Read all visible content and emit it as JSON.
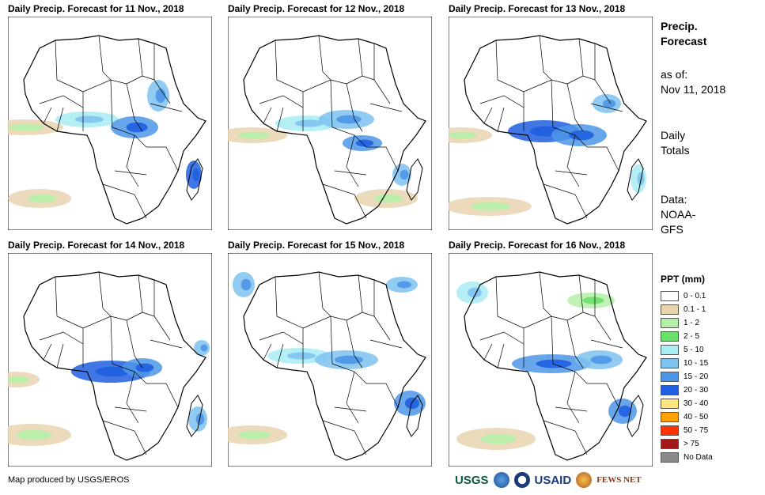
{
  "panels": [
    {
      "title": "Daily Precip. Forecast for 11 Nov., 2018"
    },
    {
      "title": "Daily Precip. Forecast for 12 Nov., 2018"
    },
    {
      "title": "Daily Precip. Forecast for 13 Nov., 2018"
    },
    {
      "title": "Daily Precip. Forecast for 14 Nov., 2018"
    },
    {
      "title": "Daily Precip. Forecast for 15 Nov., 2018"
    },
    {
      "title": "Daily Precip. Forecast for 16 Nov., 2018"
    }
  ],
  "side": {
    "title1": "Precip.",
    "title2": "Forecast",
    "asof1": "as of:",
    "asof2": "Nov 11, 2018",
    "totals1": "Daily",
    "totals2": "Totals",
    "data1": "Data:",
    "data2": "NOAA-",
    "data3": "GFS"
  },
  "legend": {
    "title": "PPT (mm)",
    "items": [
      {
        "label": "0 - 0.1",
        "color": "#ffffff"
      },
      {
        "label": "0.1 - 1",
        "color": "#e8d5b0"
      },
      {
        "label": "1 - 2",
        "color": "#b6f0a8"
      },
      {
        "label": "2 - 5",
        "color": "#6be06b"
      },
      {
        "label": "5 - 10",
        "color": "#a8ecf4"
      },
      {
        "label": "10 - 15",
        "color": "#7ec2f0"
      },
      {
        "label": "15 - 20",
        "color": "#4d96e8"
      },
      {
        "label": "20 - 30",
        "color": "#1f5fe0"
      },
      {
        "label": "30 - 40",
        "color": "#ffe680"
      },
      {
        "label": "40 - 50",
        "color": "#ffa200"
      },
      {
        "label": "50 - 75",
        "color": "#ff3300"
      },
      {
        "label": "> 75",
        "color": "#a01818"
      },
      {
        "label": "No Data",
        "color": "#8a8a8a"
      }
    ]
  },
  "footer": {
    "credit": "Map produced by USGS/EROS",
    "logo_usgs": "USGS",
    "logo_usaid": "USAID",
    "logo_fews": "FEWS NET"
  }
}
